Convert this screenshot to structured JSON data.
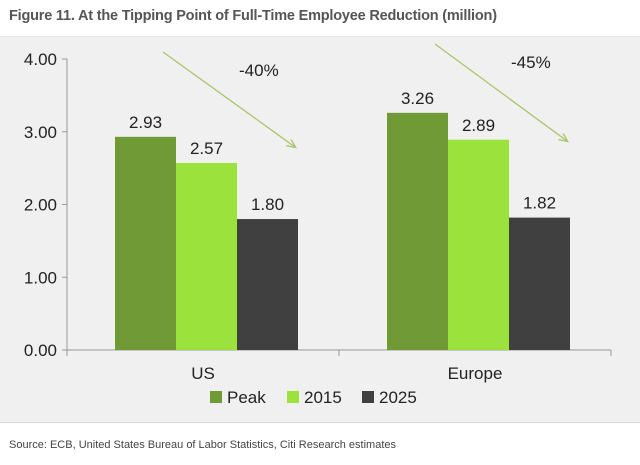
{
  "figure": {
    "title": "Figure 11. At the Tipping Point of Full-Time Employee Reduction (million)",
    "source": "Source: ECB, United States Bureau of Labor Statistics, Citi Research estimates"
  },
  "chart_data": {
    "type": "bar",
    "categories": [
      "US",
      "Europe"
    ],
    "series": [
      {
        "name": "Peak",
        "values": [
          2.93,
          3.26
        ],
        "labels": [
          "2.93",
          "3.26"
        ],
        "color": "#6f9a36"
      },
      {
        "name": "2015",
        "values": [
          2.57,
          2.89
        ],
        "labels": [
          "2.57",
          "2.89"
        ],
        "color": "#9be33c"
      },
      {
        "name": "2025",
        "values": [
          1.8,
          1.82
        ],
        "labels": [
          "1.80",
          "1.82"
        ],
        "color": "#404040"
      }
    ],
    "ylim": [
      0,
      4
    ],
    "yticks": [
      0,
      1,
      2,
      3,
      4
    ],
    "ytick_labels": [
      "0.00",
      "1.00",
      "2.00",
      "3.00",
      "4.00"
    ],
    "annotations": [
      {
        "category": "US",
        "text": "-40%"
      },
      {
        "category": "Europe",
        "text": "-45%"
      }
    ],
    "arrow_color": "#a9c46a",
    "legend_position": "bottom",
    "grid": false
  }
}
